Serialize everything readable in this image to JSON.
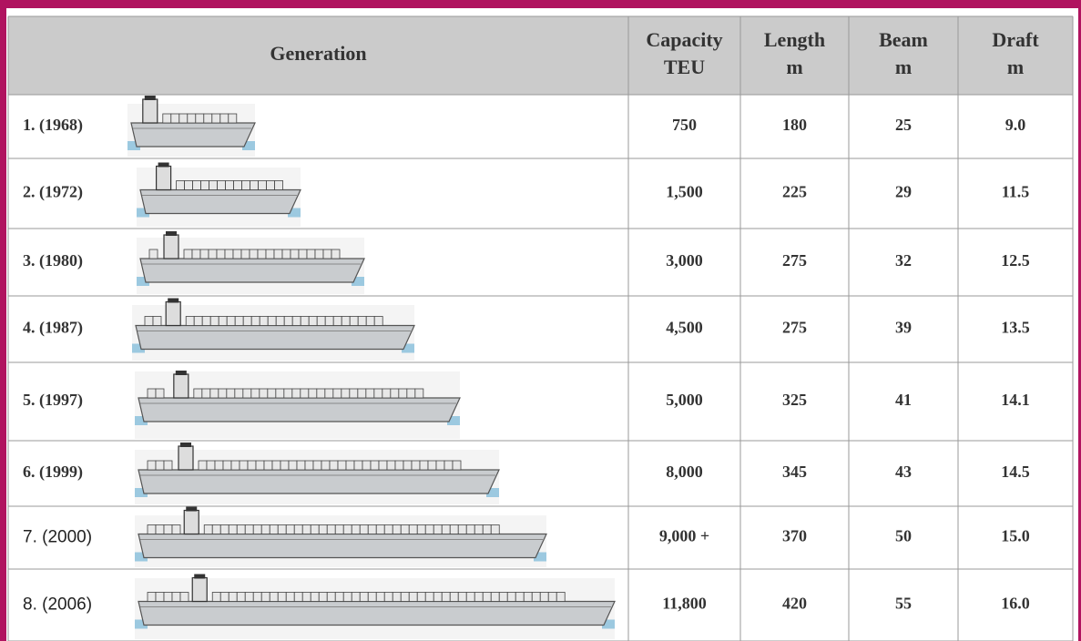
{
  "table": {
    "header": [
      [
        "Generation"
      ],
      [
        "Capacity",
        "TEU"
      ],
      [
        "Length",
        "m"
      ],
      [
        "Beam",
        "m"
      ],
      [
        "Draft",
        "m"
      ]
    ],
    "rows": [
      [
        "1. (1968)",
        "750",
        "180",
        "25",
        "9.0"
      ],
      [
        "2. (1972)",
        "1,500",
        "225",
        "29",
        "11.5"
      ],
      [
        "3. (1980)",
        "3,000",
        "275",
        "32",
        "12.5"
      ],
      [
        "4. (1987)",
        "4,500",
        "275",
        "39",
        "13.5"
      ],
      [
        "5. (1997)",
        "5,000",
        "325",
        "41",
        "14.1"
      ],
      [
        "6. (1999)",
        "8,000",
        "345",
        "43",
        "14.5"
      ],
      [
        "7. (2000)",
        "9,000 +",
        "370",
        "50",
        "15.0"
      ],
      [
        "8. (2006)",
        "11,800",
        "420",
        "55",
        "16.0"
      ]
    ]
  }
}
